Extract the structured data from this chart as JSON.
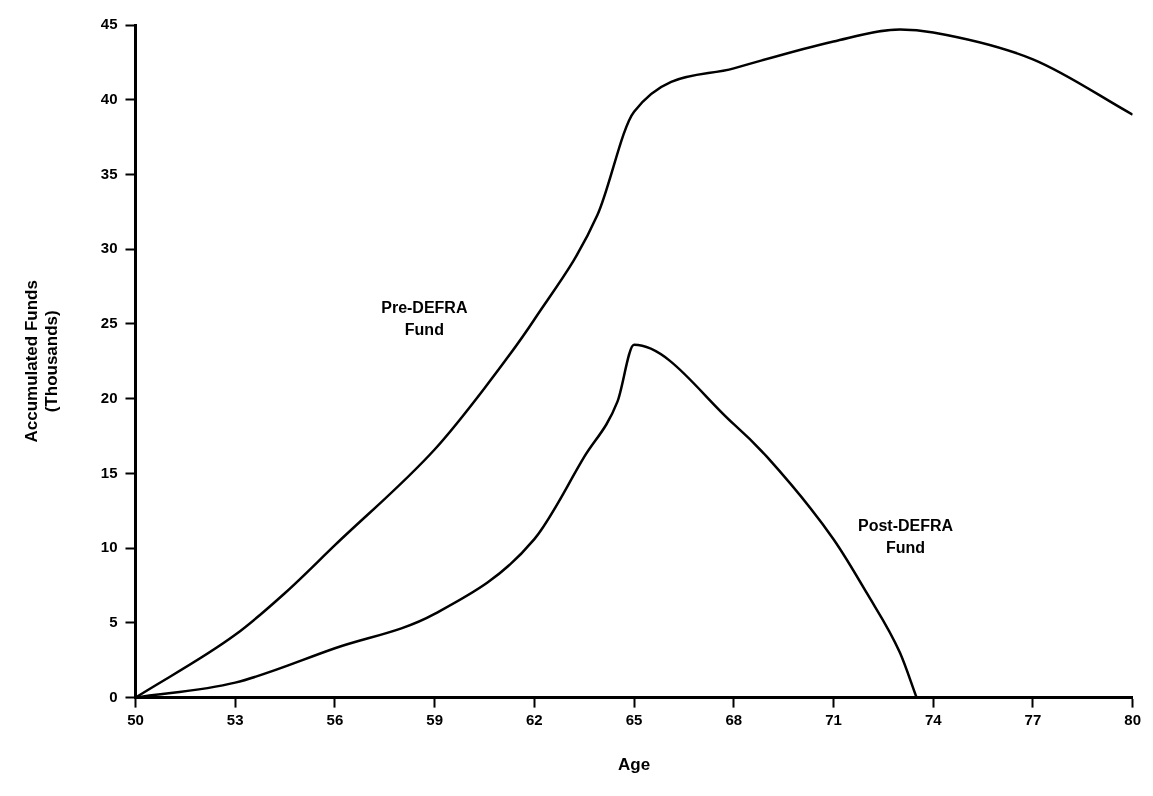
{
  "chart_data": {
    "type": "line",
    "xlabel": "Age",
    "ylabel": "Accumulated Funds\n(Thousands)",
    "xlim": [
      50,
      80
    ],
    "xticks": [
      50,
      53,
      56,
      59,
      62,
      65,
      68,
      71,
      74,
      77,
      80
    ],
    "ylim": [
      0,
      45
    ],
    "yticks": [
      0,
      5,
      10,
      15,
      20,
      25,
      30,
      35,
      40,
      45
    ],
    "grid": false,
    "legend": false,
    "marker": "none",
    "line_style": "solid",
    "series": [
      {
        "name": "Pre-DEFRA\nFund",
        "color": "#000000",
        "x": [
          50,
          53,
          54.5,
          56,
          59,
          60.5,
          62,
          63.9,
          65,
          68,
          71,
          73,
          74,
          77,
          80
        ],
        "values": [
          0,
          4.2,
          7.0,
          10.2,
          16.6,
          20.7,
          25.3,
          32.3,
          39.2,
          42.1,
          43.9,
          44.7,
          44.5,
          42.7,
          39.0
        ]
      },
      {
        "name": "Post-DEFRA\nFund",
        "color": "#000000",
        "x": [
          50,
          53,
          56,
          59,
          62,
          63.5,
          64.5,
          65,
          68,
          69,
          71,
          72,
          73,
          73.5
        ],
        "values": [
          0,
          1.0,
          3.3,
          5.6,
          10.6,
          16.1,
          19.8,
          23.6,
          18.3,
          16.1,
          10.6,
          7.0,
          3.0,
          0
        ]
      }
    ]
  }
}
